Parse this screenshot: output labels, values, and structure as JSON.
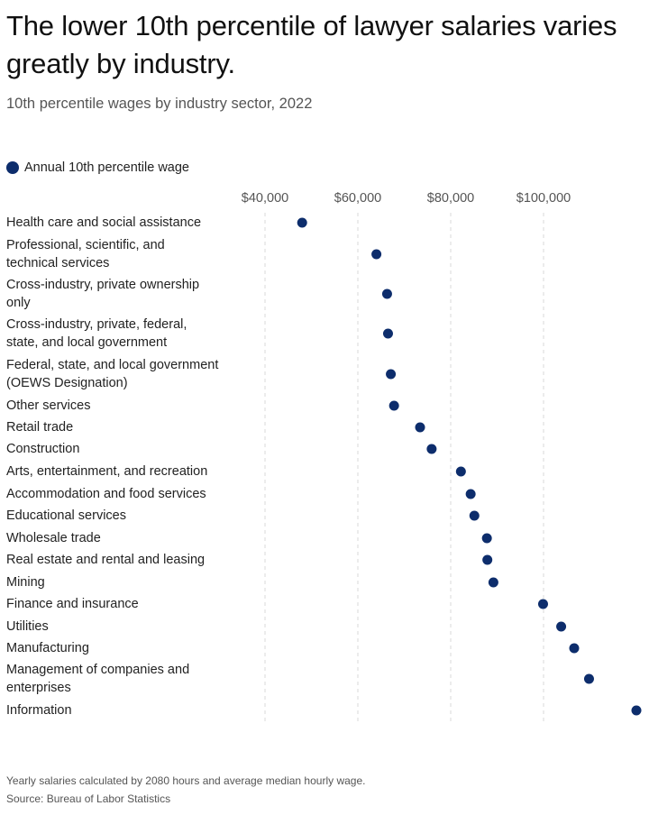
{
  "title": "The lower 10th percentile of lawyer salaries varies greatly by industry.",
  "subtitle": "10th percentile wages by industry sector, 2022",
  "legend_label": "Annual 10th percentile wage",
  "footnote_1": "Yearly salaries calculated by 2080 hours and average median hourly wage.",
  "footnote_2": "Source: Bureau of Labor Statistics",
  "colors": {
    "dot": "#0d2d6c",
    "grid": "#d9d9d9"
  },
  "chart_data": {
    "type": "scatter",
    "title": "The lower 10th percentile of lawyer salaries varies greatly by industry.",
    "subtitle": "10th percentile wages by industry sector, 2022",
    "legend": [
      "Annual 10th percentile wage"
    ],
    "legend_position": "top-left",
    "x_ticks": [
      "$40,000",
      "$60,000",
      "$80,000",
      "$100,000"
    ],
    "x_tick_values": [
      40000,
      60000,
      80000,
      100000
    ],
    "xlim": [
      40000,
      120000
    ],
    "grid": "vertical dashed",
    "categories": [
      "Health care and social assistance",
      "Professional, scientific, and technical services",
      "Cross-industry, private ownership only",
      "Cross-industry, private, federal, state, and local government",
      "Federal, state, and local government (OEWS Designation)",
      "Other services",
      "Retail trade",
      "Construction",
      "Arts, entertainment, and recreation",
      "Accommodation and food services",
      "Educational services",
      "Wholesale trade",
      "Real estate and rental and leasing",
      "Mining",
      "Finance and insurance",
      "Utilities",
      "Manufacturing",
      "Management of companies and enterprises",
      "Information"
    ],
    "values": [
      48000,
      64000,
      66300,
      66500,
      67100,
      67800,
      73400,
      75900,
      82200,
      84300,
      85100,
      87800,
      87900,
      89200,
      99900,
      103800,
      106600,
      109800,
      120000
    ]
  }
}
